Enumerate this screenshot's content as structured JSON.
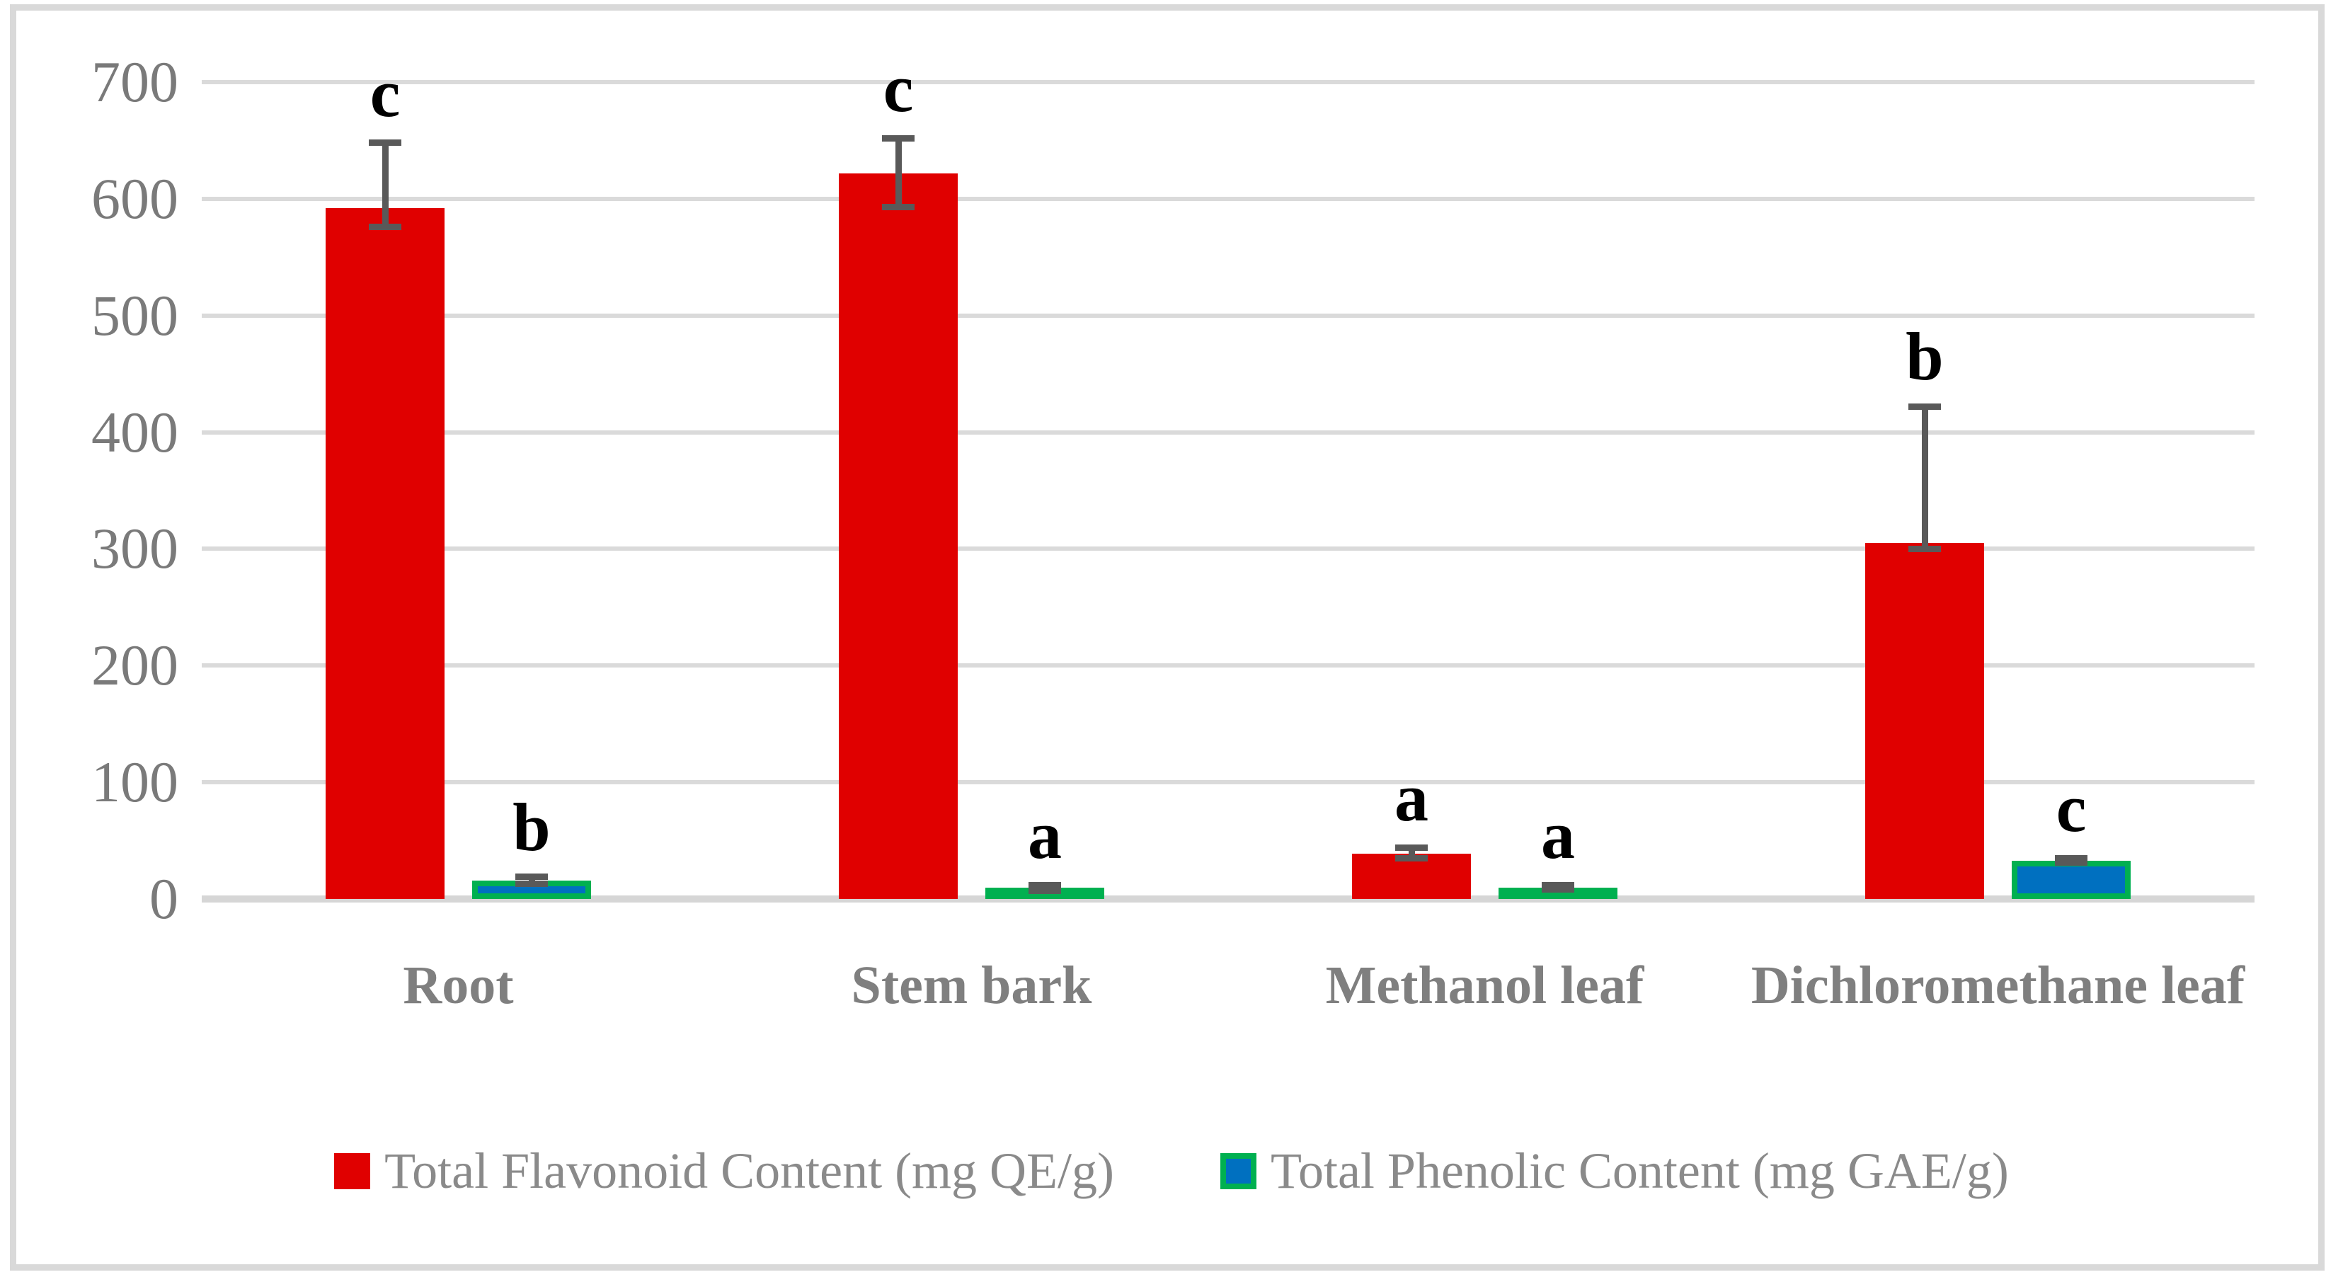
{
  "chart_data": {
    "type": "bar",
    "title": "",
    "categories": [
      "Root",
      "Stem bark",
      "Methanol leaf",
      "Dichloromethane leaf"
    ],
    "series": [
      {
        "name": "Total Flavonoid Content (mg QE/g)",
        "color": "#e00000",
        "values": [
          592,
          622,
          39,
          305
        ],
        "error_up": [
          56,
          30,
          5,
          117
        ],
        "error_down": [
          16,
          29,
          4,
          5
        ],
        "sig_letters": [
          "c",
          "c",
          "a",
          "b"
        ]
      },
      {
        "name": "Total Phenolic Content (mg GAE/g)",
        "color": "#0070c0",
        "border_color": "#00b050",
        "values": [
          16,
          9,
          10,
          33
        ],
        "error_up": [
          3,
          3,
          2,
          2
        ],
        "error_down": [
          3,
          2,
          2,
          2
        ],
        "sig_letters": [
          "b",
          "a",
          "a",
          "c"
        ]
      }
    ],
    "ylim": [
      0,
      700
    ],
    "yticks": [
      0,
      100,
      200,
      300,
      400,
      500,
      600,
      700
    ],
    "grid": true,
    "legend_position": "bottom",
    "colors": {
      "gridline": "#dadada",
      "axis_line": "#d6d6d6",
      "error_bar": "#595959",
      "tick_label": "#7a7a7a",
      "category_label": "#7f7f7f",
      "legend_text": "#8a8a8a",
      "sig_letter": "#000000",
      "frame_border": "#d9d9d9"
    }
  }
}
